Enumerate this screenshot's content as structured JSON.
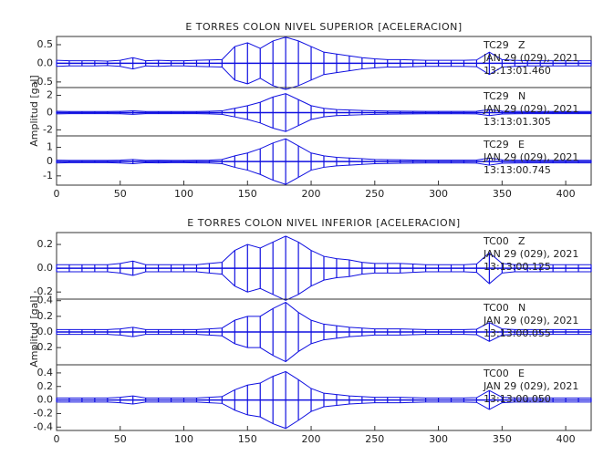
{
  "chart_data": [
    {
      "type": "seismogram",
      "title": "E TORRES COLON NIVEL SUPERIOR [ACELERACION]",
      "y_label": "Amplitud [gal]",
      "xlim": [
        0,
        420
      ],
      "xticks": [
        0,
        50,
        100,
        150,
        200,
        250,
        300,
        350,
        400
      ],
      "x": [
        0,
        10,
        20,
        30,
        40,
        50,
        60,
        70,
        80,
        90,
        100,
        110,
        120,
        130,
        140,
        150,
        160,
        170,
        180,
        190,
        200,
        210,
        220,
        230,
        240,
        250,
        260,
        270,
        280,
        290,
        300,
        310,
        320,
        330,
        340,
        350,
        360,
        370,
        380,
        390,
        400,
        410,
        420
      ],
      "series": [
        {
          "name": "Z",
          "station": "TC29",
          "date": "JAN 29 (029), 2021",
          "time": "13:13:01.460",
          "color": "#1010e0",
          "ylim": [
            -0.65,
            0.72
          ],
          "yticks": [
            {
              "value": 0.5,
              "label": "0.5"
            },
            {
              "value": 0,
              "label": "0.0"
            },
            {
              "value": -0.5,
              "label": "-0.5"
            }
          ],
          "values": [
            0.08,
            0.07,
            0.07,
            0.07,
            0.06,
            0.08,
            0.15,
            0.07,
            0.08,
            0.07,
            0.07,
            0.08,
            0.09,
            0.1,
            0.45,
            0.55,
            0.4,
            0.6,
            0.7,
            0.6,
            0.45,
            0.3,
            0.25,
            0.2,
            0.15,
            0.12,
            0.1,
            0.1,
            0.09,
            0.08,
            0.08,
            0.08,
            0.08,
            0.09,
            0.3,
            0.1,
            0.08,
            0.07,
            0.07,
            0.07,
            0.07,
            0.07,
            0.07
          ]
        },
        {
          "name": "N",
          "station": "TC29",
          "date": "JAN 29 (029), 2021",
          "time": "13:13:01.305",
          "color": "#1010e0",
          "ylim": [
            -2.7,
            2.9
          ],
          "yticks": [
            2,
            0,
            -2
          ],
          "values": [
            0.15,
            0.12,
            0.12,
            0.12,
            0.12,
            0.14,
            0.2,
            0.12,
            0.13,
            0.12,
            0.12,
            0.13,
            0.15,
            0.2,
            0.5,
            0.8,
            1.2,
            1.8,
            2.2,
            1.5,
            0.8,
            0.5,
            0.35,
            0.3,
            0.25,
            0.2,
            0.18,
            0.16,
            0.15,
            0.14,
            0.14,
            0.14,
            0.14,
            0.15,
            0.35,
            0.16,
            0.14,
            0.13,
            0.13,
            0.13,
            0.13,
            0.13,
            0.13
          ]
        },
        {
          "name": "E",
          "station": "TC29",
          "date": "JAN 29 (029), 2021",
          "time": "13:13:00.745",
          "color": "#1010e0",
          "ylim": [
            -1.65,
            1.8
          ],
          "yticks": [
            1,
            0,
            -1
          ],
          "values": [
            0.1,
            0.08,
            0.08,
            0.08,
            0.08,
            0.1,
            0.15,
            0.08,
            0.09,
            0.08,
            0.08,
            0.09,
            0.1,
            0.15,
            0.4,
            0.6,
            0.9,
            1.3,
            1.6,
            1.1,
            0.6,
            0.4,
            0.3,
            0.25,
            0.2,
            0.15,
            0.13,
            0.12,
            0.11,
            0.1,
            0.1,
            0.1,
            0.1,
            0.11,
            0.25,
            0.12,
            0.1,
            0.09,
            0.09,
            0.09,
            0.09,
            0.09,
            0.09
          ]
        }
      ]
    },
    {
      "type": "seismogram",
      "title": "E TORRES COLON NIVEL INFERIOR [ACELERACION]",
      "y_label": "Amplitud [gal]",
      "xlim": [
        0,
        420
      ],
      "xticks": [
        0,
        50,
        100,
        150,
        200,
        250,
        300,
        350,
        400
      ],
      "x": [
        0,
        10,
        20,
        30,
        40,
        50,
        60,
        70,
        80,
        90,
        100,
        110,
        120,
        130,
        140,
        150,
        160,
        170,
        180,
        190,
        200,
        210,
        220,
        230,
        240,
        250,
        260,
        270,
        280,
        290,
        300,
        310,
        320,
        330,
        340,
        350,
        360,
        370,
        380,
        390,
        400,
        410,
        420
      ],
      "series": [
        {
          "name": "Z",
          "station": "TC00",
          "date": "JAN 29 (029), 2021",
          "time": "13:13:00.125",
          "color": "#1010e0",
          "ylim": [
            -0.26,
            0.3
          ],
          "yticks": [
            {
              "value": 0.2,
              "label": "0.2"
            },
            {
              "value": 0,
              "label": "0.0"
            },
            {
              "value": -0.2,
              "label": "-0.2"
            }
          ],
          "values": [
            0.03,
            0.03,
            0.03,
            0.03,
            0.03,
            0.04,
            0.06,
            0.03,
            0.03,
            0.03,
            0.03,
            0.03,
            0.04,
            0.05,
            0.15,
            0.2,
            0.17,
            0.22,
            0.27,
            0.22,
            0.15,
            0.1,
            0.08,
            0.07,
            0.05,
            0.04,
            0.04,
            0.04,
            0.035,
            0.03,
            0.03,
            0.03,
            0.03,
            0.035,
            0.13,
            0.04,
            0.03,
            0.03,
            0.03,
            0.03,
            0.03,
            0.03,
            0.03
          ]
        },
        {
          "name": "N",
          "station": "TC00",
          "date": "JAN 29 (029), 2021",
          "time": "13:13:00.055",
          "color": "#1010e0",
          "ylim": [
            -0.42,
            0.42
          ],
          "yticks": [
            {
              "value": 0.4,
              "label": "0.4"
            },
            {
              "value": 0.2,
              "label": "0.2"
            },
            {
              "value": 0,
              "label": "0.0"
            },
            {
              "value": -0.2,
              "label": "-0.2"
            }
          ],
          "values": [
            0.03,
            0.03,
            0.03,
            0.03,
            0.03,
            0.04,
            0.06,
            0.03,
            0.03,
            0.03,
            0.03,
            0.03,
            0.04,
            0.05,
            0.15,
            0.2,
            0.2,
            0.3,
            0.38,
            0.25,
            0.15,
            0.1,
            0.08,
            0.06,
            0.05,
            0.04,
            0.04,
            0.04,
            0.035,
            0.03,
            0.03,
            0.03,
            0.03,
            0.035,
            0.12,
            0.04,
            0.03,
            0.03,
            0.03,
            0.03,
            0.03,
            0.03,
            0.03
          ]
        },
        {
          "name": "E",
          "station": "TC00",
          "date": "JAN 29 (029), 2021",
          "time": "13:13:00.050",
          "color": "#1010e0",
          "ylim": [
            -0.45,
            0.52
          ],
          "yticks": [
            {
              "value": 0.4,
              "label": "0.4"
            },
            {
              "value": 0.2,
              "label": "0.2"
            },
            {
              "value": 0,
              "label": "0.0"
            },
            {
              "value": -0.2,
              "label": "-0.2"
            },
            {
              "value": -0.4,
              "label": "-0.4"
            }
          ],
          "values": [
            0.03,
            0.03,
            0.03,
            0.03,
            0.03,
            0.04,
            0.06,
            0.03,
            0.03,
            0.03,
            0.03,
            0.03,
            0.04,
            0.05,
            0.15,
            0.22,
            0.25,
            0.35,
            0.42,
            0.3,
            0.17,
            0.1,
            0.08,
            0.06,
            0.05,
            0.04,
            0.04,
            0.04,
            0.035,
            0.03,
            0.03,
            0.03,
            0.03,
            0.035,
            0.14,
            0.04,
            0.03,
            0.03,
            0.03,
            0.03,
            0.03,
            0.03,
            0.03
          ]
        }
      ]
    }
  ]
}
